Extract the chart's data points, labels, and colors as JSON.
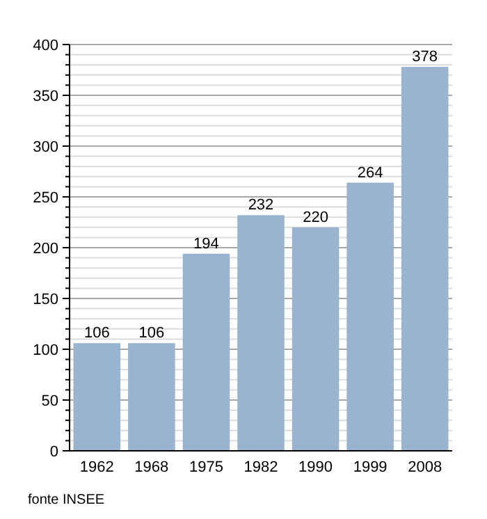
{
  "chart_data": {
    "type": "bar",
    "categories": [
      "1962",
      "1968",
      "1975",
      "1982",
      "1990",
      "1999",
      "2008"
    ],
    "values": [
      106,
      106,
      194,
      232,
      220,
      264,
      378
    ],
    "color": "#9ab3ce",
    "data_labels": true,
    "ylim": [
      0,
      400
    ],
    "yticks": [
      0,
      {
        "value": 10,
        "label": null
      },
      {
        "value": 20,
        "label": null
      },
      {
        "value": 30,
        "label": null
      },
      {
        "value": 40,
        "label": null
      },
      50,
      {
        "value": 60,
        "label": null
      },
      {
        "value": 70,
        "label": null
      },
      {
        "value": 80,
        "label": null
      },
      {
        "value": 90,
        "label": null
      },
      100,
      {
        "value": 110,
        "label": null
      },
      {
        "value": 120,
        "label": null
      },
      {
        "value": 130,
        "label": null
      },
      {
        "value": 140,
        "label": null
      },
      150,
      {
        "value": 160,
        "label": null
      },
      {
        "value": 170,
        "label": null
      },
      {
        "value": 180,
        "label": null
      },
      {
        "value": 190,
        "label": null
      },
      200,
      {
        "value": 210,
        "label": null
      },
      {
        "value": 220,
        "label": null
      },
      {
        "value": 230,
        "label": null
      },
      {
        "value": 240,
        "label": null
      },
      250,
      {
        "value": 260,
        "label": null
      },
      {
        "value": 270,
        "label": null
      },
      {
        "value": 280,
        "label": null
      },
      {
        "value": 290,
        "label": null
      },
      300,
      {
        "value": 310,
        "label": null
      },
      {
        "value": 320,
        "label": null
      },
      {
        "value": 330,
        "label": null
      },
      {
        "value": 340,
        "label": null
      },
      350,
      {
        "value": 360,
        "label": null
      },
      {
        "value": 370,
        "label": null
      },
      {
        "value": 380,
        "label": null
      },
      {
        "value": 390,
        "label": null
      },
      400
    ],
    "grid": "y",
    "annotations": [
      "fonte INSEE"
    ]
  }
}
